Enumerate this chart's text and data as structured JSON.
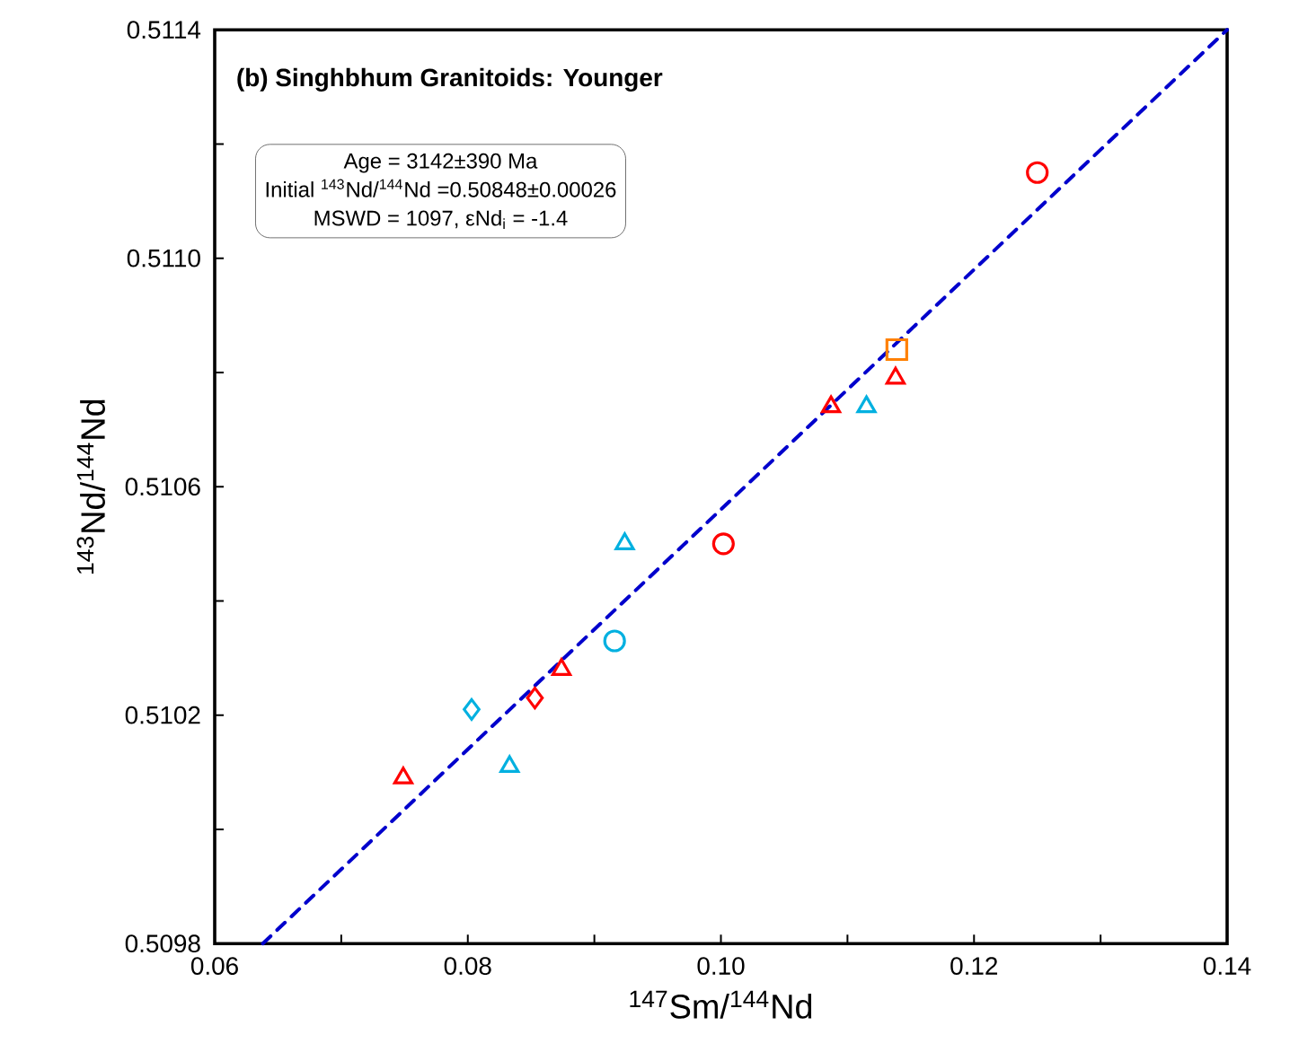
{
  "chart_data": {
    "type": "scatter",
    "title": "(b) Singhbhum Granitoids: Younger",
    "xlabel": "$^{147}$Sm/$^{144}$Nd",
    "ylabel": "$^{143}$Nd/$^{144}$Nd",
    "annotations": [
      "Age = 3142±390 Ma",
      "Initial $^{143}$Nd/$^{144}$Nd =0.50848±0.00026",
      "MSWD = 1097, εNd$_{i}$ = -1.4"
    ],
    "xlim": [
      0.06,
      0.14
    ],
    "ylim": [
      0.5098,
      0.5114
    ],
    "xticks": [
      {
        "value": 0.06,
        "label": "0.06"
      },
      {
        "value": 0.07,
        "label": null
      },
      {
        "value": 0.08,
        "label": "0.08"
      },
      {
        "value": 0.09,
        "label": null
      },
      {
        "value": 0.1,
        "label": "0.10"
      },
      {
        "value": 0.11,
        "label": null
      },
      {
        "value": 0.12,
        "label": "0.12"
      },
      {
        "value": 0.13,
        "label": null
      },
      {
        "value": 0.14,
        "label": "0.14"
      }
    ],
    "yticks": [
      {
        "value": 0.5098,
        "label": "0.5098"
      },
      {
        "value": 0.51,
        "label": null
      },
      {
        "value": 0.5102,
        "label": "0.5102"
      },
      {
        "value": 0.5104,
        "label": null
      },
      {
        "value": 0.5106,
        "label": "0.5106"
      },
      {
        "value": 0.5108,
        "label": null
      },
      {
        "value": 0.511,
        "label": "0.5110"
      },
      {
        "value": 0.5112,
        "label": null
      },
      {
        "value": 0.5114,
        "label": "0.5114"
      }
    ],
    "grid": false,
    "series": [
      {
        "type": "line",
        "color": "#0000cc",
        "line_style": "dashed",
        "marker": "none",
        "x": [
          0.0638,
          0.14
        ],
        "values": [
          0.5098,
          0.5114
        ]
      },
      {
        "color": "#ff0000",
        "marker": "triangle",
        "x": [
          0.0749,
          0.0874,
          0.1087,
          0.1138
        ],
        "values": [
          0.51009,
          0.51028,
          0.51074,
          0.51079
        ]
      },
      {
        "color": "#ff0000",
        "marker": "circle",
        "x": [
          0.1002,
          0.125
        ],
        "values": [
          0.5105,
          0.51115
        ]
      },
      {
        "color": "#ff0000",
        "marker": "diamond",
        "x": [
          0.0853
        ],
        "values": [
          0.51023
        ]
      },
      {
        "color": "#00b0e0",
        "marker": "triangle",
        "x": [
          0.0833,
          0.0924,
          0.1115
        ],
        "values": [
          0.51011,
          0.5105,
          0.51074
        ]
      },
      {
        "color": "#00b0e0",
        "marker": "circle",
        "x": [
          0.0916
        ],
        "values": [
          0.51033
        ]
      },
      {
        "color": "#00b0e0",
        "marker": "diamond",
        "x": [
          0.0803
        ],
        "values": [
          0.51021
        ]
      },
      {
        "color": "#ff8000",
        "marker": "square",
        "x": [
          0.1139
        ],
        "values": [
          0.51084
        ]
      }
    ]
  }
}
